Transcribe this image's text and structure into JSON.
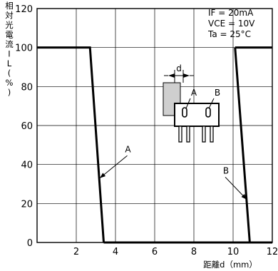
{
  "chart_data": {
    "type": "line",
    "title": "",
    "xlabel": "距離d（mm）",
    "ylabel": "相対光電流IL(%)",
    "xlim": [
      0,
      12
    ],
    "ylim": [
      0,
      120
    ],
    "x_ticks": [
      2,
      4,
      6,
      8,
      10,
      12
    ],
    "y_ticks": [
      0,
      20,
      40,
      60,
      80,
      100,
      120
    ],
    "x_tick_labels": [
      "2",
      "4",
      "6",
      "8",
      "10",
      "12"
    ],
    "y_tick_labels": [
      "0",
      "20",
      "40",
      "60",
      "80",
      "100",
      "120"
    ],
    "grid": true,
    "legend": "none",
    "conditions": [
      "IF = 20mA",
      "VCE = 10V",
      "Ta = 25°C"
    ],
    "series": [
      {
        "name": "A",
        "points": [
          [
            0,
            100
          ],
          [
            2.7,
            100
          ],
          [
            3.4,
            0
          ]
        ]
      },
      {
        "name": "B",
        "points": [
          [
            10.1,
            100
          ],
          [
            12,
            100
          ]
        ]
      },
      {
        "name": "",
        "points": [
          [
            10.1,
            100
          ],
          [
            10.85,
            0
          ],
          [
            12,
            0
          ]
        ]
      },
      {
        "name": "",
        "points": [
          [
            3.4,
            0
          ],
          [
            10.85,
            0
          ]
        ]
      }
    ],
    "callouts": [
      {
        "label": "A",
        "at": [
          3.2,
          33
        ],
        "text_at": [
          4.6,
          46
        ]
      },
      {
        "label": "B",
        "at": [
          10.7,
          22
        ],
        "text_at": [
          9.6,
          35
        ]
      }
    ],
    "inset": {
      "gap_label": "d",
      "left_label": "A",
      "right_label": "B"
    }
  }
}
